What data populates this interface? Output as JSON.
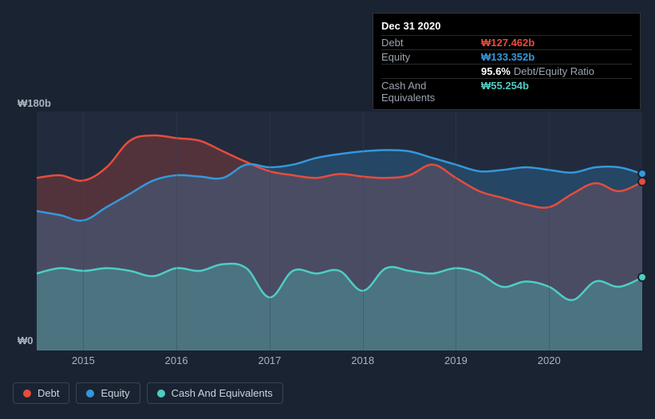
{
  "tooltip": {
    "date": "Dec 31 2020",
    "rows": [
      {
        "label": "Debt",
        "value": "₩127.462b",
        "color": "#e74c3c"
      },
      {
        "label": "Equity",
        "value": "₩133.352b",
        "color": "#3498db"
      },
      {
        "label": "",
        "value": "95.6%",
        "color": "#ffffff",
        "extra": "Debt/Equity Ratio"
      },
      {
        "label": "Cash And Equivalents",
        "value": "₩55.254b",
        "color": "#4ecdc4"
      }
    ]
  },
  "chart": {
    "type": "area",
    "background_color": "#212b3d",
    "page_background": "#1a2332",
    "ylabel_top": "₩180b",
    "ylabel_bottom": "₩0",
    "ylabel_color": "#aab2bd",
    "ylim": [
      0,
      180
    ],
    "xlim": [
      2014.5,
      2021.0
    ],
    "xticks": [
      2015,
      2016,
      2017,
      2018,
      2019,
      2020
    ],
    "xticklabels": [
      "2015",
      "2016",
      "2017",
      "2018",
      "2019",
      "2020"
    ],
    "grid_color": "#3a4454",
    "label_fontsize": 13,
    "series": [
      {
        "name": "Debt",
        "color": "#e74c3c",
        "fill_opacity": 0.25,
        "line_width": 2.5,
        "x": [
          2014.5,
          2014.75,
          2015.0,
          2015.25,
          2015.5,
          2015.75,
          2016.0,
          2016.25,
          2016.5,
          2016.75,
          2017.0,
          2017.25,
          2017.5,
          2017.75,
          2018.0,
          2018.25,
          2018.5,
          2018.75,
          2019.0,
          2019.25,
          2019.5,
          2019.75,
          2020.0,
          2020.25,
          2020.5,
          2020.75,
          2021.0
        ],
        "y": [
          130,
          132,
          128,
          138,
          158,
          162,
          160,
          158,
          150,
          142,
          135,
          132,
          130,
          133,
          131,
          130,
          132,
          140,
          130,
          120,
          115,
          110,
          108,
          118,
          126,
          120,
          127
        ]
      },
      {
        "name": "Equity",
        "color": "#3498db",
        "fill_opacity": 0.25,
        "line_width": 2.5,
        "x": [
          2014.5,
          2014.75,
          2015.0,
          2015.25,
          2015.5,
          2015.75,
          2016.0,
          2016.25,
          2016.5,
          2016.75,
          2017.0,
          2017.25,
          2017.5,
          2017.75,
          2018.0,
          2018.25,
          2018.5,
          2018.75,
          2019.0,
          2019.25,
          2019.5,
          2019.75,
          2020.0,
          2020.25,
          2020.5,
          2020.75,
          2021.0
        ],
        "y": [
          105,
          102,
          98,
          108,
          118,
          128,
          132,
          131,
          130,
          140,
          138,
          140,
          145,
          148,
          150,
          151,
          150,
          145,
          140,
          135,
          136,
          138,
          136,
          134,
          138,
          138,
          133
        ]
      },
      {
        "name": "Cash And Equivalents",
        "color": "#4ecdc4",
        "fill_opacity": 0.3,
        "line_width": 2.5,
        "x": [
          2014.5,
          2014.75,
          2015.0,
          2015.25,
          2015.5,
          2015.75,
          2016.0,
          2016.25,
          2016.5,
          2016.75,
          2017.0,
          2017.25,
          2017.5,
          2017.75,
          2018.0,
          2018.25,
          2018.5,
          2018.75,
          2019.0,
          2019.25,
          2019.5,
          2019.75,
          2020.0,
          2020.25,
          2020.5,
          2020.75,
          2021.0
        ],
        "y": [
          58,
          62,
          60,
          62,
          60,
          56,
          62,
          60,
          65,
          62,
          40,
          60,
          58,
          60,
          45,
          62,
          60,
          58,
          62,
          58,
          48,
          52,
          48,
          38,
          52,
          48,
          55
        ]
      }
    ],
    "end_markers": [
      {
        "color": "#3498db",
        "y": 133
      },
      {
        "color": "#e74c3c",
        "y": 127
      },
      {
        "color": "#4ecdc4",
        "y": 55
      }
    ]
  },
  "legend": {
    "items": [
      {
        "label": "Debt",
        "color": "#e74c3c"
      },
      {
        "label": "Equity",
        "color": "#3498db"
      },
      {
        "label": "Cash And Equivalents",
        "color": "#4ecdc4"
      }
    ],
    "border_color": "#3a4454",
    "fontsize": 13
  }
}
